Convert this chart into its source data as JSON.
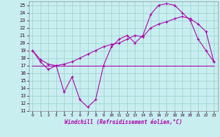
{
  "xlabel": "Windchill (Refroidissement éolien,°C)",
  "xlim": [
    -0.5,
    23.5
  ],
  "ylim": [
    11,
    25.5
  ],
  "xticks": [
    0,
    1,
    2,
    3,
    4,
    5,
    6,
    7,
    8,
    9,
    10,
    11,
    12,
    13,
    14,
    15,
    16,
    17,
    18,
    19,
    20,
    21,
    22,
    23
  ],
  "yticks": [
    11,
    12,
    13,
    14,
    15,
    16,
    17,
    18,
    19,
    20,
    21,
    22,
    23,
    24,
    25
  ],
  "bg_color": "#c8eef0",
  "line_color": "#aa00aa",
  "grid_color": "#99cccc",
  "line1_x": [
    0,
    1,
    2,
    3,
    4,
    5,
    6,
    7,
    8,
    9,
    10,
    11,
    12,
    13,
    14,
    15,
    16,
    17,
    18,
    19,
    20,
    21,
    22,
    23
  ],
  "line1_y": [
    19.0,
    17.5,
    16.5,
    17.0,
    13.5,
    15.5,
    12.5,
    11.5,
    12.5,
    17.0,
    19.5,
    20.5,
    21.0,
    20.0,
    21.0,
    23.8,
    25.0,
    25.2,
    25.0,
    24.0,
    23.0,
    20.5,
    19.0,
    17.5
  ],
  "line2_x": [
    0,
    1,
    2,
    3,
    4,
    5,
    6,
    7,
    8,
    9,
    10,
    11,
    12,
    13,
    14,
    15,
    16,
    17,
    18,
    19,
    20,
    21,
    22,
    23
  ],
  "line2_y": [
    19.0,
    17.8,
    17.2,
    17.0,
    17.2,
    17.5,
    18.0,
    18.5,
    19.0,
    19.5,
    19.8,
    20.0,
    20.5,
    21.0,
    20.8,
    22.0,
    22.5,
    22.8,
    23.2,
    23.5,
    23.2,
    22.5,
    21.5,
    17.5
  ],
  "line3_x": [
    0,
    20,
    23
  ],
  "line3_y": [
    17.0,
    17.0,
    17.0
  ]
}
